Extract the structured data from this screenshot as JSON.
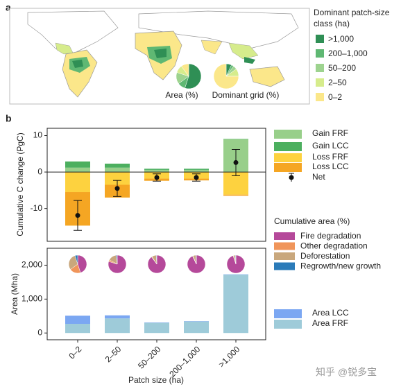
{
  "chart_data": [
    {
      "type": "pie",
      "panel": "a",
      "legend_title": "Dominant patch-size class (ha)",
      "categories": [
        ">1,000",
        "200–1,000",
        "50–200",
        "2–50",
        "0–2"
      ],
      "colors": [
        "#2f8f55",
        "#5fb873",
        "#9dd38f",
        "#d6ec8c",
        "#fbe78a"
      ],
      "pies": [
        {
          "name": "Area (%)",
          "values": [
            55,
            10,
            15,
            10,
            10
          ]
        },
        {
          "name": "Dominant grid (%)",
          "values": [
            7,
            3,
            5,
            10,
            75
          ]
        }
      ]
    },
    {
      "type": "bar",
      "panel": "b",
      "y_label": "Cumulative C change (PgC)",
      "categories": [
        "0–2",
        "2–50",
        "50–200",
        "200–1,000",
        ">1,000"
      ],
      "ylim": [
        -19,
        12
      ],
      "yticks": [
        -10,
        0,
        10
      ],
      "series": [
        {
          "name": "Gain FRF",
          "color": "#98cf8a",
          "values": [
            1.2,
            1.2,
            0.6,
            0.6,
            9
          ]
        },
        {
          "name": "Gain LCC",
          "color": "#4caf5f",
          "values": [
            1.7,
            1.1,
            0.3,
            0.3,
            0.1
          ]
        },
        {
          "name": "Loss FRF",
          "color": "#fdd23f",
          "values": [
            -5.5,
            -3.5,
            -1.8,
            -1.8,
            -6.2
          ]
        },
        {
          "name": "Loss LCC",
          "color": "#f5a623",
          "values": [
            -9.2,
            -3.5,
            -0.6,
            -0.5,
            -0.3
          ]
        },
        {
          "name": "Net",
          "color": "#111111",
          "values": [
            -11.9,
            -4.5,
            -1.5,
            -1.5,
            2.6
          ],
          "errors": [
            4.1,
            2.2,
            1,
            1,
            3.6
          ]
        }
      ]
    },
    {
      "type": "bar",
      "y_label": "Area (Mha)",
      "x_label": "Patch size (ha)",
      "categories": [
        "0–2",
        "2–50",
        "50–200",
        "200–1,000",
        ">1,000"
      ],
      "ylim": [
        -200,
        2500
      ],
      "yticks": [
        0,
        {
          "value": 1000,
          "label": "1,000"
        },
        {
          "value": 2000,
          "label": "2,000"
        }
      ],
      "series": [
        {
          "name": "Area LCC",
          "color": "#7ba7f2",
          "values": [
            240,
            90,
            10,
            10,
            10
          ]
        },
        {
          "name": "Area FRF",
          "color": "#9ecbd9",
          "values": [
            270,
            430,
            300,
            340,
            1720
          ]
        }
      ],
      "pies": {
        "title": "Cumulative area (%)",
        "names": [
          "Fire degradation",
          "Other degradation",
          "Deforestation",
          "Regrowth/new growth"
        ],
        "colors": [
          "#b5499a",
          "#f0955a",
          "#c9a77c",
          "#2b7bb9"
        ],
        "values": [
          [
            45,
            20,
            30,
            5
          ],
          [
            80,
            3,
            15,
            2
          ],
          [
            90,
            1,
            8,
            1
          ],
          [
            93,
            1,
            5,
            1
          ],
          [
            95,
            1,
            3,
            1
          ]
        ]
      }
    }
  ],
  "watermark": "知乎 @锐多宝"
}
